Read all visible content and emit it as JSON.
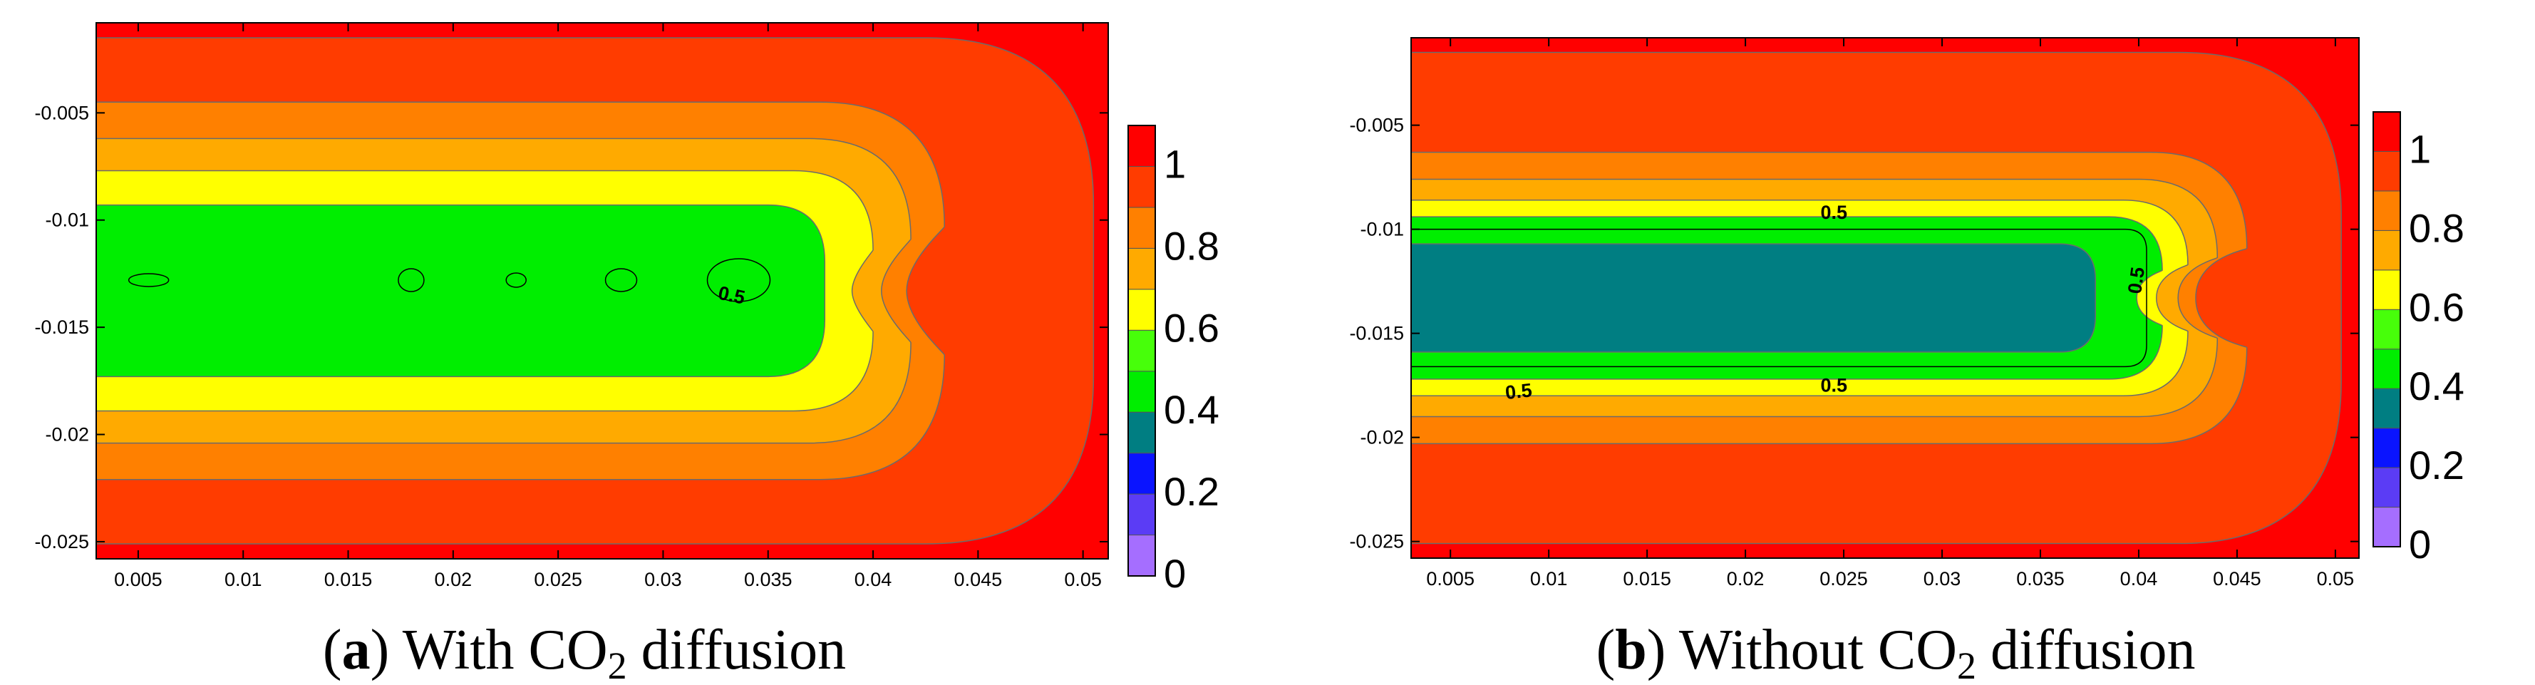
{
  "chart_data": [
    {
      "type": "contour",
      "panel": "a",
      "caption": {
        "tag": "a",
        "prefix": "With CO",
        "subscript": "2",
        "suffix": " diffusion"
      },
      "xlim": [
        0.003,
        0.0512
      ],
      "ylim": [
        -0.0258,
        -0.0008
      ],
      "xticks": [
        0.005,
        0.01,
        0.015,
        0.02,
        0.025,
        0.03,
        0.035,
        0.04,
        0.045,
        0.05
      ],
      "xtick_labels": [
        "0.005",
        "0.01",
        "0.015",
        "0.02",
        "0.025",
        "0.03",
        "0.035",
        "0.04",
        "0.045",
        "0.05"
      ],
      "yticks": [
        -0.005,
        -0.01,
        -0.015,
        -0.02,
        -0.025
      ],
      "ytick_labels": [
        "-0.005",
        "-0.01",
        "-0.015",
        "-0.02",
        "-0.025"
      ],
      "colorbar": {
        "levels": [
          0,
          0.1,
          0.2,
          0.3,
          0.4,
          0.5,
          0.6,
          0.7,
          0.8,
          0.9,
          1.0,
          1.1
        ],
        "colors": [
          "#a56eff",
          "#5b3cf5",
          "#0a14ff",
          "#007e82",
          "#00ee00",
          "#47ff0a",
          "#ffff00",
          "#ffaa00",
          "#ff8000",
          "#ff3c00",
          "#ff0000"
        ],
        "tick_values": [
          0,
          0.2,
          0.4,
          0.6,
          0.8,
          1
        ],
        "tick_labels": [
          "0",
          "0.2",
          "0.4",
          "0.6",
          "0.8",
          "1"
        ]
      },
      "contour_labels": [
        {
          "text": "0.5",
          "x": 0.0332,
          "y": -0.0138,
          "angle": 12
        }
      ],
      "contour_bands": [
        {
          "level": 0.9,
          "color": "#ff3c00",
          "x_end": 0.0505,
          "half_height": 0.0118,
          "nose": 0.0
        },
        {
          "level": 0.8,
          "color": "#ff8000",
          "x_end": 0.0434,
          "half_height": 0.0088,
          "nose": 0.0018
        },
        {
          "level": 0.7,
          "color": "#ffaa00",
          "x_end": 0.0418,
          "half_height": 0.0071,
          "nose": 0.0014
        },
        {
          "level": 0.6,
          "color": "#ffff00",
          "x_end": 0.04,
          "half_height": 0.0056,
          "nose": 0.001
        },
        {
          "level": 0.5,
          "color": "#00ee00",
          "x_end": 0.0377,
          "half_height": 0.004,
          "nose": 0.0
        }
      ]
    },
    {
      "type": "contour",
      "panel": "b",
      "caption": {
        "tag": "b",
        "prefix": "Without CO",
        "subscript": "2",
        "suffix": " diffusion"
      },
      "xlim": [
        0.003,
        0.0512
      ],
      "ylim": [
        -0.0258,
        -0.0008
      ],
      "xticks": [
        0.005,
        0.01,
        0.015,
        0.02,
        0.025,
        0.03,
        0.035,
        0.04,
        0.045,
        0.05
      ],
      "xtick_labels": [
        "0.005",
        "0.01",
        "0.015",
        "0.02",
        "0.025",
        "0.03",
        "0.035",
        "0.04",
        "0.045",
        "0.05"
      ],
      "yticks": [
        -0.005,
        -0.01,
        -0.015,
        -0.02,
        -0.025
      ],
      "ytick_labels": [
        "-0.005",
        "-0.01",
        "-0.015",
        "-0.02",
        "-0.025"
      ],
      "colorbar": {
        "levels": [
          0,
          0.1,
          0.2,
          0.3,
          0.4,
          0.5,
          0.6,
          0.7,
          0.8,
          0.9,
          1.0,
          1.1
        ],
        "colors": [
          "#a56eff",
          "#5b3cf5",
          "#0a14ff",
          "#007e82",
          "#00ee00",
          "#47ff0a",
          "#ffff00",
          "#ffaa00",
          "#ff8000",
          "#ff3c00",
          "#ff0000"
        ],
        "tick_values": [
          0,
          0.2,
          0.4,
          0.6,
          0.8,
          1
        ],
        "tick_labels": [
          "0",
          "0.2",
          "0.4",
          "0.6",
          "0.8",
          "1"
        ]
      },
      "contour_labels": [
        {
          "text": "0.5",
          "x": 0.0245,
          "y": -0.0095,
          "angle": 0
        },
        {
          "text": "0.5",
          "x": 0.0402,
          "y": -0.0125,
          "angle": -82
        },
        {
          "text": "0.5",
          "x": 0.0085,
          "y": -0.0181,
          "angle": -6
        },
        {
          "text": "0.5",
          "x": 0.0245,
          "y": -0.0178,
          "angle": 0
        }
      ],
      "contour_bands": [
        {
          "level": 0.9,
          "color": "#ff3c00",
          "x_end": 0.0503,
          "half_height": 0.0118,
          "nose": 0.0
        },
        {
          "level": 0.8,
          "color": "#ff8000",
          "x_end": 0.0455,
          "half_height": 0.007,
          "nose": 0.0026
        },
        {
          "level": 0.7,
          "color": "#ffaa00",
          "x_end": 0.044,
          "half_height": 0.0057,
          "nose": 0.002
        },
        {
          "level": 0.6,
          "color": "#ffff00",
          "x_end": 0.0425,
          "half_height": 0.0047,
          "nose": 0.0016
        },
        {
          "level": 0.5,
          "color": "#00ee00",
          "x_end": 0.0412,
          "half_height": 0.0039,
          "nose": 0.0013
        },
        {
          "level": 0.3,
          "color": "#007e82",
          "x_end": 0.0378,
          "half_height": 0.0026,
          "nose": 0.0
        }
      ]
    }
  ]
}
